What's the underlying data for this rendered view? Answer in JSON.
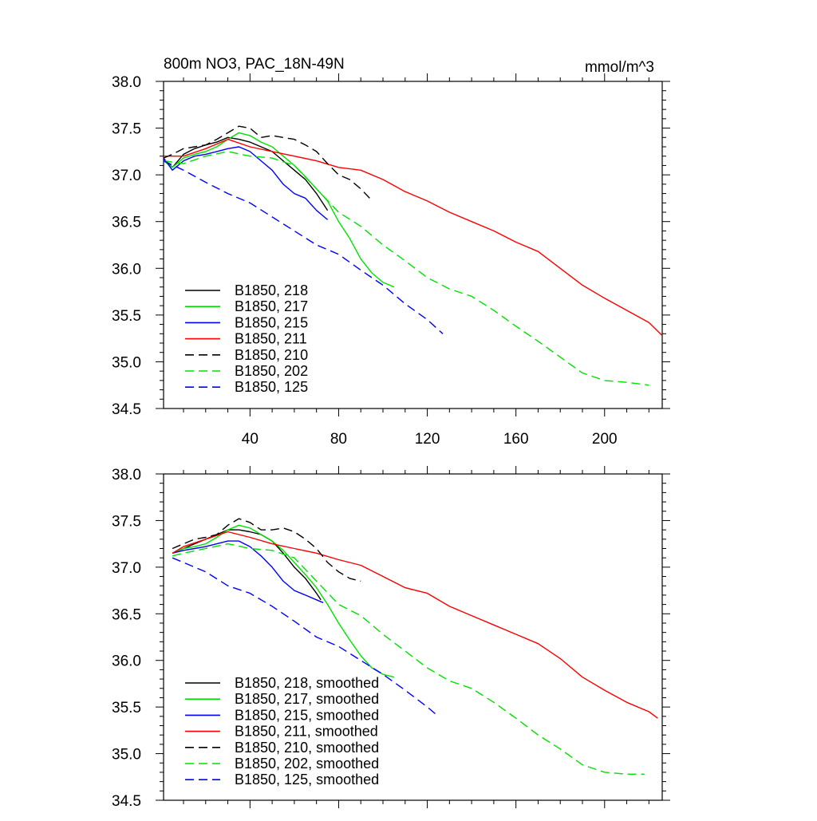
{
  "chart_data": [
    {
      "type": "line",
      "title": "800m NO3, PAC_18N-49N",
      "units": "mmol/m^3",
      "xlabel": "",
      "ylabel": "",
      "xlim": [
        1,
        226
      ],
      "ylim": [
        34.5,
        38.0
      ],
      "xticks": [
        40,
        80,
        120,
        160,
        200
      ],
      "yticks": [
        34.5,
        35.0,
        35.5,
        36.0,
        36.5,
        37.0,
        37.5,
        38.0
      ],
      "xtick_labels": [
        "40",
        "80",
        "120",
        "160",
        "200"
      ],
      "ytick_labels": [
        "34.5",
        "35.0",
        "35.5",
        "36.0",
        "36.5",
        "37.0",
        "37.5",
        "38.0"
      ],
      "legend_position": "lower-left",
      "grid": false,
      "series": [
        {
          "name": "B1850, 218",
          "color": "#000000",
          "dash": "solid",
          "x": [
            1,
            5,
            10,
            15,
            20,
            25,
            30,
            35,
            40,
            45,
            50,
            55,
            60,
            65,
            70,
            75
          ],
          "y": [
            37.17,
            37.08,
            37.22,
            37.28,
            37.32,
            37.35,
            37.4,
            37.38,
            37.35,
            37.3,
            37.25,
            37.15,
            37.05,
            36.95,
            36.8,
            36.62
          ]
        },
        {
          "name": "B1850, 217",
          "color": "#00e000",
          "dash": "solid",
          "x": [
            1,
            5,
            10,
            15,
            20,
            25,
            30,
            35,
            40,
            45,
            50,
            55,
            60,
            65,
            70,
            75,
            80,
            85,
            90,
            95,
            100,
            105
          ],
          "y": [
            37.15,
            37.08,
            37.18,
            37.22,
            37.25,
            37.3,
            37.38,
            37.45,
            37.42,
            37.35,
            37.3,
            37.2,
            37.1,
            36.98,
            36.85,
            36.72,
            36.5,
            36.32,
            36.1,
            35.95,
            35.85,
            35.8
          ]
        },
        {
          "name": "B1850, 215",
          "color": "#0000ff",
          "dash": "solid",
          "x": [
            1,
            5,
            10,
            15,
            20,
            25,
            30,
            35,
            40,
            45,
            50,
            55,
            60,
            65,
            70,
            75
          ],
          "y": [
            37.18,
            37.05,
            37.15,
            37.2,
            37.22,
            37.25,
            37.28,
            37.3,
            37.25,
            37.15,
            37.05,
            36.9,
            36.8,
            36.75,
            36.62,
            36.52
          ]
        },
        {
          "name": "B1850, 211",
          "color": "#ff0000",
          "dash": "solid",
          "x": [
            1,
            10,
            20,
            30,
            40,
            50,
            60,
            70,
            80,
            90,
            100,
            110,
            120,
            130,
            140,
            150,
            160,
            170,
            180,
            190,
            200,
            210,
            220,
            226
          ],
          "y": [
            37.2,
            37.2,
            37.28,
            37.38,
            37.3,
            37.25,
            37.2,
            37.15,
            37.08,
            37.05,
            36.95,
            36.82,
            36.72,
            36.6,
            36.5,
            36.4,
            36.28,
            36.18,
            36.0,
            35.82,
            35.68,
            35.55,
            35.42,
            35.28
          ]
        },
        {
          "name": "B1850, 210",
          "color": "#000000",
          "dash": "dashed",
          "x": [
            1,
            5,
            10,
            15,
            20,
            25,
            30,
            35,
            40,
            45,
            50,
            55,
            60,
            65,
            70,
            75,
            80,
            85,
            90,
            94
          ],
          "y": [
            37.18,
            37.22,
            37.28,
            37.3,
            37.32,
            37.38,
            37.45,
            37.52,
            37.5,
            37.4,
            37.42,
            37.4,
            37.38,
            37.32,
            37.25,
            37.12,
            37.0,
            36.95,
            36.85,
            36.75
          ]
        },
        {
          "name": "B1850, 202",
          "color": "#00e000",
          "dash": "dashed",
          "x": [
            1,
            10,
            20,
            30,
            40,
            50,
            60,
            70,
            80,
            90,
            100,
            110,
            120,
            130,
            140,
            150,
            160,
            170,
            180,
            190,
            200,
            210,
            220
          ],
          "y": [
            37.15,
            37.12,
            37.2,
            37.25,
            37.2,
            37.18,
            37.1,
            36.85,
            36.6,
            36.45,
            36.25,
            36.08,
            35.9,
            35.78,
            35.7,
            35.55,
            35.38,
            35.22,
            35.05,
            34.88,
            34.8,
            34.78,
            34.75
          ]
        },
        {
          "name": "B1850, 125",
          "color": "#0000ff",
          "dash": "dashed",
          "x": [
            1,
            10,
            20,
            30,
            40,
            50,
            60,
            70,
            80,
            90,
            100,
            110,
            120,
            127
          ],
          "y": [
            37.15,
            37.05,
            36.92,
            36.8,
            36.7,
            36.55,
            36.4,
            36.25,
            36.15,
            35.98,
            35.82,
            35.62,
            35.45,
            35.3
          ]
        }
      ]
    },
    {
      "type": "line",
      "title": "",
      "xlabel": "",
      "ylabel": "",
      "xlim": [
        1,
        226
      ],
      "ylim": [
        34.5,
        38.0
      ],
      "xticks": [
        40,
        80,
        120,
        160,
        200
      ],
      "yticks": [
        34.5,
        35.0,
        35.5,
        36.0,
        36.5,
        37.0,
        37.5,
        38.0
      ],
      "xtick_labels": [],
      "ytick_labels": [
        "34.5",
        "35.0",
        "35.5",
        "36.0",
        "36.5",
        "37.0",
        "37.5",
        "38.0"
      ],
      "legend_position": "lower-left",
      "grid": false,
      "series": [
        {
          "name": "B1850, 218, smoothed",
          "color": "#000000",
          "dash": "solid",
          "x": [
            5,
            10,
            15,
            20,
            25,
            30,
            35,
            40,
            45,
            50,
            55,
            60,
            65,
            70,
            72
          ],
          "y": [
            37.15,
            37.2,
            37.25,
            37.3,
            37.35,
            37.4,
            37.4,
            37.38,
            37.35,
            37.28,
            37.15,
            37.0,
            36.88,
            36.72,
            36.65
          ]
        },
        {
          "name": "B1850, 217, smoothed",
          "color": "#00e000",
          "dash": "solid",
          "x": [
            5,
            10,
            15,
            20,
            25,
            30,
            35,
            40,
            45,
            50,
            55,
            60,
            65,
            70,
            75,
            80,
            85,
            90,
            95,
            100,
            105
          ],
          "y": [
            37.15,
            37.2,
            37.22,
            37.25,
            37.32,
            37.4,
            37.45,
            37.42,
            37.35,
            37.28,
            37.18,
            37.05,
            36.92,
            36.78,
            36.6,
            36.4,
            36.22,
            36.05,
            35.92,
            35.85,
            35.82
          ]
        },
        {
          "name": "B1850, 215, smoothed",
          "color": "#0000ff",
          "dash": "solid",
          "x": [
            5,
            10,
            15,
            20,
            25,
            30,
            35,
            40,
            45,
            50,
            55,
            60,
            65,
            70,
            73
          ],
          "y": [
            37.15,
            37.18,
            37.2,
            37.22,
            37.25,
            37.28,
            37.28,
            37.22,
            37.12,
            37.0,
            36.85,
            36.75,
            36.7,
            36.65,
            36.62
          ]
        },
        {
          "name": "B1850, 211, smoothed",
          "color": "#ff0000",
          "dash": "solid",
          "x": [
            5,
            10,
            20,
            30,
            40,
            50,
            60,
            70,
            80,
            90,
            100,
            110,
            120,
            130,
            140,
            150,
            160,
            170,
            180,
            190,
            200,
            210,
            220,
            224
          ],
          "y": [
            37.15,
            37.22,
            37.3,
            37.38,
            37.32,
            37.25,
            37.2,
            37.15,
            37.08,
            37.02,
            36.9,
            36.78,
            36.72,
            36.58,
            36.48,
            36.38,
            36.28,
            36.18,
            36.02,
            35.82,
            35.68,
            35.55,
            35.45,
            35.38
          ]
        },
        {
          "name": "B1850, 210, smoothed",
          "color": "#000000",
          "dash": "dashed",
          "x": [
            5,
            10,
            15,
            20,
            25,
            30,
            35,
            40,
            45,
            50,
            55,
            60,
            65,
            70,
            75,
            80,
            85,
            90
          ],
          "y": [
            37.2,
            37.25,
            37.3,
            37.32,
            37.35,
            37.45,
            37.52,
            37.48,
            37.4,
            37.4,
            37.42,
            37.38,
            37.3,
            37.2,
            37.05,
            36.95,
            36.88,
            36.85
          ]
        },
        {
          "name": "B1850, 202, smoothed",
          "color": "#00e000",
          "dash": "dashed",
          "x": [
            5,
            10,
            20,
            30,
            40,
            50,
            60,
            70,
            80,
            90,
            100,
            110,
            120,
            130,
            140,
            150,
            160,
            170,
            180,
            190,
            200,
            210,
            218
          ],
          "y": [
            37.12,
            37.15,
            37.2,
            37.25,
            37.2,
            37.18,
            37.1,
            36.85,
            36.6,
            36.48,
            36.28,
            36.1,
            35.92,
            35.78,
            35.7,
            35.55,
            35.38,
            35.2,
            35.05,
            34.88,
            34.8,
            34.78,
            34.78
          ]
        },
        {
          "name": "B1850, 125, smoothed",
          "color": "#0000ff",
          "dash": "dashed",
          "x": [
            5,
            10,
            20,
            30,
            40,
            50,
            60,
            70,
            80,
            90,
            100,
            110,
            120,
            125
          ],
          "y": [
            37.1,
            37.05,
            36.95,
            36.8,
            36.72,
            36.58,
            36.42,
            36.25,
            36.15,
            36.0,
            35.85,
            35.68,
            35.5,
            35.4
          ]
        }
      ]
    }
  ]
}
